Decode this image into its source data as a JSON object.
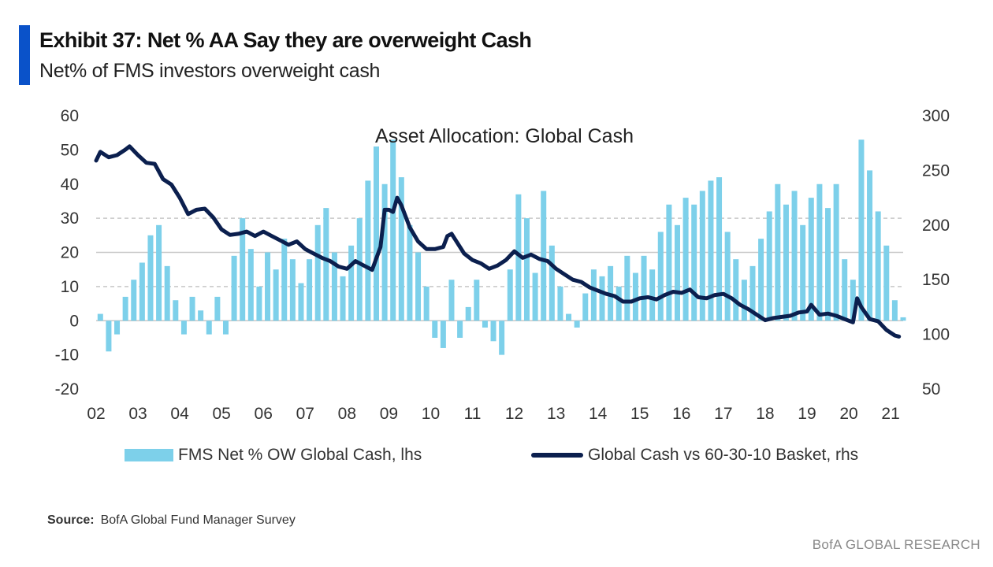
{
  "header": {
    "title": "Exhibit 37: Net % AA Say they are overweight Cash",
    "subtitle": "Net% of FMS investors overweight cash"
  },
  "footer": {
    "source_label": "Source:",
    "source_text": "BofA Global Fund Manager Survey",
    "brand": "BofA GLOBAL RESEARCH"
  },
  "colors": {
    "bars": "#7dd0ea",
    "line": "#0b1f4e",
    "accent": "#0a52c9",
    "grid": "#c8c8c8"
  },
  "chart_data": {
    "type": "bar+line",
    "title": "Asset Allocation: Global Cash",
    "x_tick_labels": [
      "02",
      "03",
      "04",
      "05",
      "06",
      "07",
      "08",
      "09",
      "10",
      "11",
      "12",
      "13",
      "14",
      "15",
      "16",
      "17",
      "18",
      "19",
      "20",
      "21"
    ],
    "x_range": [
      2002.0,
      2021.3
    ],
    "y_left": {
      "range": [
        -20,
        60
      ],
      "ticks": [
        60,
        50,
        40,
        30,
        20,
        10,
        0,
        -10,
        -20
      ]
    },
    "y_right": {
      "range": [
        50,
        300
      ],
      "ticks": [
        300,
        250,
        200,
        150,
        100,
        50
      ]
    },
    "grid": {
      "solid": [
        20,
        0
      ],
      "dashed": [
        30,
        10
      ]
    },
    "legend_position": "bottom",
    "series": [
      {
        "name": "FMS Net % OW Global Cash, lhs",
        "type": "bar",
        "axis": "left",
        "points": [
          [
            2002.1,
            2
          ],
          [
            2002.3,
            -9
          ],
          [
            2002.5,
            -4
          ],
          [
            2002.7,
            7
          ],
          [
            2002.9,
            12
          ],
          [
            2003.1,
            17
          ],
          [
            2003.3,
            25
          ],
          [
            2003.5,
            28
          ],
          [
            2003.7,
            16
          ],
          [
            2003.9,
            6
          ],
          [
            2004.1,
            -4
          ],
          [
            2004.3,
            7
          ],
          [
            2004.5,
            3
          ],
          [
            2004.7,
            -4
          ],
          [
            2004.9,
            7
          ],
          [
            2005.1,
            -4
          ],
          [
            2005.3,
            19
          ],
          [
            2005.5,
            30
          ],
          [
            2005.7,
            21
          ],
          [
            2005.9,
            10
          ],
          [
            2006.1,
            20
          ],
          [
            2006.3,
            15
          ],
          [
            2006.5,
            24
          ],
          [
            2006.7,
            18
          ],
          [
            2006.9,
            11
          ],
          [
            2007.1,
            18
          ],
          [
            2007.3,
            28
          ],
          [
            2007.5,
            33
          ],
          [
            2007.7,
            20
          ],
          [
            2007.9,
            13
          ],
          [
            2008.1,
            22
          ],
          [
            2008.3,
            30
          ],
          [
            2008.5,
            41
          ],
          [
            2008.7,
            51
          ],
          [
            2008.9,
            40
          ],
          [
            2009.1,
            53
          ],
          [
            2009.3,
            42
          ],
          [
            2009.5,
            28
          ],
          [
            2009.7,
            20
          ],
          [
            2009.9,
            10
          ],
          [
            2010.1,
            -5
          ],
          [
            2010.3,
            -8
          ],
          [
            2010.5,
            12
          ],
          [
            2010.7,
            -5
          ],
          [
            2010.9,
            4
          ],
          [
            2011.1,
            12
          ],
          [
            2011.3,
            -2
          ],
          [
            2011.5,
            -6
          ],
          [
            2011.7,
            -10
          ],
          [
            2011.9,
            15
          ],
          [
            2012.1,
            37
          ],
          [
            2012.3,
            30
          ],
          [
            2012.5,
            14
          ],
          [
            2012.7,
            38
          ],
          [
            2012.9,
            22
          ],
          [
            2013.1,
            10
          ],
          [
            2013.3,
            2
          ],
          [
            2013.5,
            -2
          ],
          [
            2013.7,
            8
          ],
          [
            2013.9,
            15
          ],
          [
            2014.1,
            13
          ],
          [
            2014.3,
            16
          ],
          [
            2014.5,
            10
          ],
          [
            2014.7,
            19
          ],
          [
            2014.9,
            14
          ],
          [
            2015.1,
            19
          ],
          [
            2015.3,
            15
          ],
          [
            2015.5,
            26
          ],
          [
            2015.7,
            34
          ],
          [
            2015.9,
            28
          ],
          [
            2016.1,
            36
          ],
          [
            2016.3,
            34
          ],
          [
            2016.5,
            38
          ],
          [
            2016.7,
            41
          ],
          [
            2016.9,
            42
          ],
          [
            2017.1,
            26
          ],
          [
            2017.3,
            18
          ],
          [
            2017.5,
            12
          ],
          [
            2017.7,
            16
          ],
          [
            2017.9,
            24
          ],
          [
            2018.1,
            32
          ],
          [
            2018.3,
            40
          ],
          [
            2018.5,
            34
          ],
          [
            2018.7,
            38
          ],
          [
            2018.9,
            28
          ],
          [
            2019.1,
            36
          ],
          [
            2019.3,
            40
          ],
          [
            2019.5,
            33
          ],
          [
            2019.7,
            40
          ],
          [
            2019.9,
            18
          ],
          [
            2020.1,
            12
          ],
          [
            2020.3,
            53
          ],
          [
            2020.5,
            44
          ],
          [
            2020.7,
            32
          ],
          [
            2020.9,
            22
          ],
          [
            2021.1,
            6
          ],
          [
            2021.3,
            1
          ]
        ]
      },
      {
        "name": "Global Cash vs 60-30-10 Basket, rhs",
        "type": "line",
        "axis": "right",
        "points": [
          [
            2002.0,
            259
          ],
          [
            2002.1,
            267
          ],
          [
            2002.3,
            262
          ],
          [
            2002.5,
            264
          ],
          [
            2002.7,
            269
          ],
          [
            2002.8,
            272
          ],
          [
            2003.0,
            264
          ],
          [
            2003.2,
            257
          ],
          [
            2003.4,
            256
          ],
          [
            2003.6,
            242
          ],
          [
            2003.8,
            237
          ],
          [
            2004.0,
            225
          ],
          [
            2004.2,
            210
          ],
          [
            2004.4,
            214
          ],
          [
            2004.6,
            215
          ],
          [
            2004.8,
            207
          ],
          [
            2005.0,
            196
          ],
          [
            2005.2,
            191
          ],
          [
            2005.4,
            192
          ],
          [
            2005.6,
            194
          ],
          [
            2005.8,
            190
          ],
          [
            2006.0,
            194
          ],
          [
            2006.2,
            190
          ],
          [
            2006.4,
            186
          ],
          [
            2006.6,
            182
          ],
          [
            2006.8,
            185
          ],
          [
            2007.0,
            178
          ],
          [
            2007.2,
            174
          ],
          [
            2007.4,
            170
          ],
          [
            2007.6,
            167
          ],
          [
            2007.8,
            162
          ],
          [
            2008.0,
            160
          ],
          [
            2008.2,
            167
          ],
          [
            2008.4,
            163
          ],
          [
            2008.6,
            159
          ],
          [
            2008.8,
            180
          ],
          [
            2008.9,
            214
          ],
          [
            2009.0,
            214
          ],
          [
            2009.1,
            212
          ],
          [
            2009.2,
            225
          ],
          [
            2009.3,
            218
          ],
          [
            2009.5,
            198
          ],
          [
            2009.7,
            185
          ],
          [
            2009.9,
            178
          ],
          [
            2010.1,
            178
          ],
          [
            2010.3,
            180
          ],
          [
            2010.4,
            190
          ],
          [
            2010.5,
            192
          ],
          [
            2010.6,
            186
          ],
          [
            2010.8,
            174
          ],
          [
            2011.0,
            168
          ],
          [
            2011.2,
            165
          ],
          [
            2011.4,
            160
          ],
          [
            2011.6,
            163
          ],
          [
            2011.8,
            168
          ],
          [
            2012.0,
            176
          ],
          [
            2012.2,
            170
          ],
          [
            2012.4,
            173
          ],
          [
            2012.6,
            169
          ],
          [
            2012.8,
            167
          ],
          [
            2013.0,
            160
          ],
          [
            2013.2,
            155
          ],
          [
            2013.4,
            150
          ],
          [
            2013.6,
            148
          ],
          [
            2013.8,
            143
          ],
          [
            2014.0,
            140
          ],
          [
            2014.2,
            137
          ],
          [
            2014.4,
            135
          ],
          [
            2014.6,
            130
          ],
          [
            2014.8,
            130
          ],
          [
            2015.0,
            133
          ],
          [
            2015.2,
            134
          ],
          [
            2015.4,
            132
          ],
          [
            2015.6,
            136
          ],
          [
            2015.8,
            139
          ],
          [
            2016.0,
            138
          ],
          [
            2016.2,
            141
          ],
          [
            2016.4,
            134
          ],
          [
            2016.6,
            133
          ],
          [
            2016.8,
            136
          ],
          [
            2017.0,
            137
          ],
          [
            2017.2,
            133
          ],
          [
            2017.4,
            127
          ],
          [
            2017.6,
            123
          ],
          [
            2017.8,
            118
          ],
          [
            2018.0,
            113
          ],
          [
            2018.2,
            115
          ],
          [
            2018.4,
            116
          ],
          [
            2018.6,
            117
          ],
          [
            2018.8,
            120
          ],
          [
            2019.0,
            121
          ],
          [
            2019.1,
            127
          ],
          [
            2019.3,
            118
          ],
          [
            2019.5,
            119
          ],
          [
            2019.7,
            117
          ],
          [
            2019.9,
            114
          ],
          [
            2020.1,
            111
          ],
          [
            2020.2,
            133
          ],
          [
            2020.3,
            125
          ],
          [
            2020.5,
            114
          ],
          [
            2020.7,
            112
          ],
          [
            2020.9,
            104
          ],
          [
            2021.1,
            99
          ],
          [
            2021.2,
            98
          ]
        ]
      }
    ]
  }
}
